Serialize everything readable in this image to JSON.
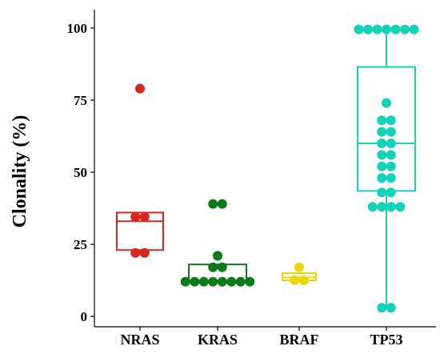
{
  "chart_data": {
    "type": "box-dot",
    "title": "",
    "xlabel": "",
    "ylabel": "Clonality (%)",
    "ylim": [
      0,
      100
    ],
    "yticks": [
      0,
      25,
      50,
      75,
      100
    ],
    "categories": [
      "NRAS",
      "KRAS",
      "BRAF",
      "TP53"
    ],
    "grid": false,
    "legend": "none",
    "groups": [
      {
        "name": "NRAS",
        "color": "#d7261e",
        "box": {
          "q1": 23,
          "median": 33,
          "q3": 36,
          "whisker_low": 22,
          "whisker_high": 36
        },
        "points": [
          79,
          34.5,
          34.5,
          22,
          22
        ]
      },
      {
        "name": "KRAS",
        "color": "#0b7a18",
        "box": {
          "q1": 12,
          "median": 12,
          "q3": 18,
          "whisker_low": 12,
          "whisker_high": 18
        },
        "points": [
          39,
          39,
          21,
          17,
          17,
          12,
          12,
          12,
          12,
          12,
          12,
          12,
          12
        ]
      },
      {
        "name": "BRAF",
        "color": "#ecd800",
        "box": {
          "q1": 12.5,
          "median": 13.5,
          "q3": 15,
          "whisker_low": 12.5,
          "whisker_high": 15
        },
        "points": [
          17,
          12.5,
          12.5
        ]
      },
      {
        "name": "TP53",
        "color": "#12d3b8",
        "box": {
          "q1": 43.5,
          "median": 60,
          "q3": 86.5,
          "whisker_low": 3,
          "whisker_high": 99.5
        },
        "points": [
          99.5,
          99.5,
          99.5,
          99.5,
          99.5,
          99.5,
          99.5,
          74,
          68,
          68,
          64,
          64,
          60,
          60,
          56,
          56,
          52,
          52,
          48,
          48,
          43,
          43,
          38,
          38,
          38,
          38,
          3,
          3
        ]
      }
    ]
  }
}
